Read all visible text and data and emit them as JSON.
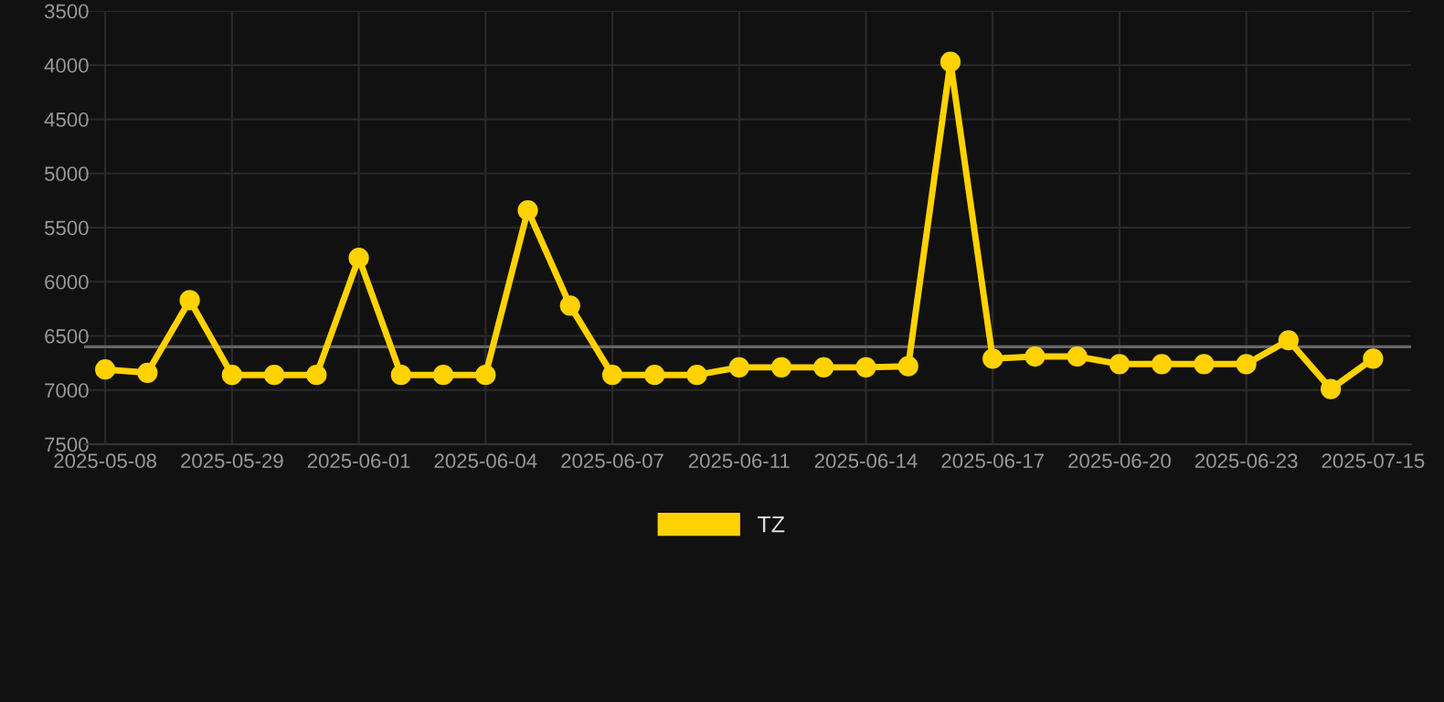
{
  "chart_data": {
    "type": "line",
    "categories": [
      "2025-05-08",
      null,
      null,
      "2025-05-29",
      null,
      null,
      "2025-06-01",
      null,
      null,
      "2025-06-04",
      null,
      null,
      "2025-06-07",
      null,
      null,
      "2025-06-11",
      null,
      null,
      "2025-06-14",
      null,
      null,
      "2025-06-17",
      null,
      null,
      "2025-06-20",
      null,
      null,
      "2025-06-23",
      null,
      null,
      "2025-07-15"
    ],
    "series": [
      {
        "name": "TZ",
        "color": "#ffd200",
        "values": [
          6810,
          6840,
          6170,
          6860,
          6860,
          6860,
          5780,
          6860,
          6860,
          6860,
          5340,
          6220,
          6860,
          6860,
          6860,
          6790,
          6790,
          6790,
          6790,
          6780,
          3970,
          6710,
          6690,
          6690,
          6760,
          6760,
          6760,
          6760,
          6540,
          6990,
          6710
        ]
      }
    ],
    "ylim": [
      7500,
      3500
    ],
    "yticks": [
      3500,
      4000,
      4500,
      5000,
      5500,
      6000,
      6500,
      7000,
      7500
    ],
    "ref_lines": [
      {
        "axis": "y",
        "value": 6600,
        "color": "#666666"
      }
    ],
    "grid": true,
    "legend": "bottom",
    "marker": "circle",
    "line_style": "solid"
  }
}
